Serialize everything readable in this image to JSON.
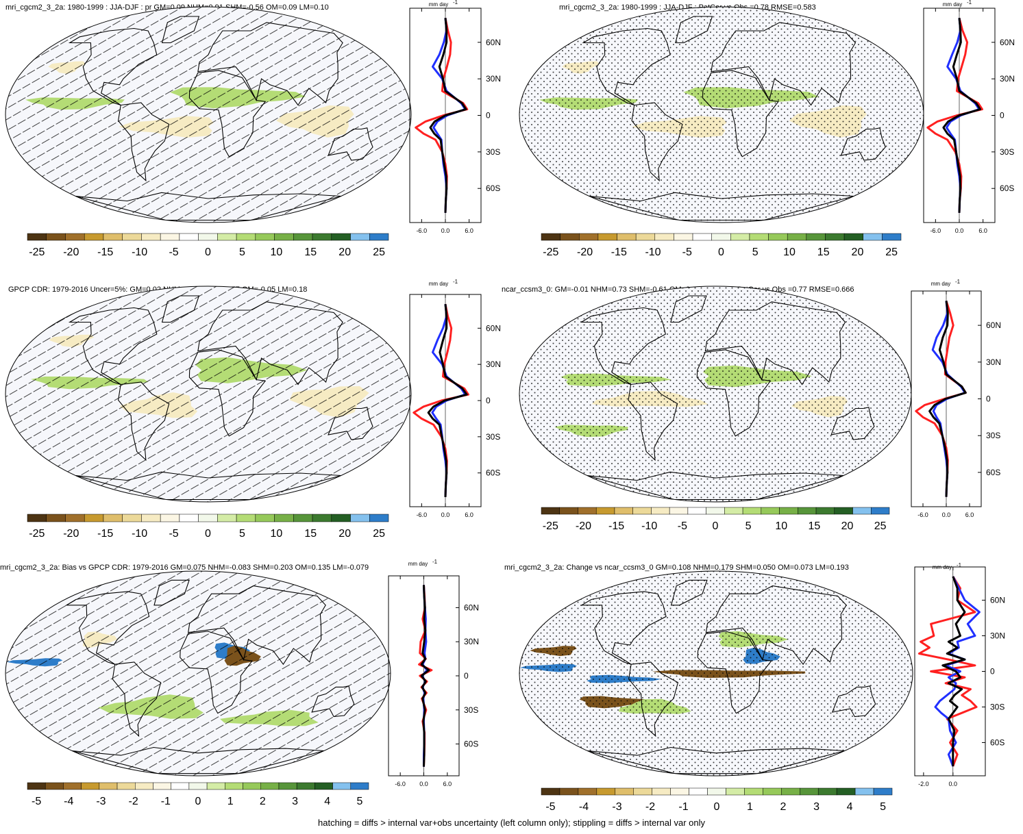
{
  "figure": {
    "footer": "hatching = diffs > internal var+obs uncertainty (left column only); stippling = diffs > internal var only"
  },
  "chart_data": [
    {
      "type": "heatmap",
      "title": "mri_cgcm2_3_2a: 1980-1999 : JJA-DJF : pr GM=0.09 NHM=0.91 SHM=-0.56 OM=0.09 LM=0.10",
      "overlay": "hatching",
      "colorbar": {
        "ticks": [
          "-25",
          "-20",
          "-15",
          "-10",
          "-5",
          "0",
          "5",
          "10",
          "15",
          "20",
          "25"
        ]
      },
      "zonal_mean": {
        "unit": "mm day",
        "xlim": [
          -9,
          9
        ],
        "xticks": [
          "-6.0",
          "0.0",
          "6.0"
        ],
        "lat_ticks": [
          "60N",
          "30N",
          "0",
          "30S",
          "60S"
        ],
        "lat": [
          80,
          70,
          60,
          50,
          40,
          30,
          20,
          10,
          5,
          0,
          -5,
          -10,
          -15,
          -20,
          -30,
          -40,
          -50,
          -60,
          -70,
          -80
        ],
        "series": [
          {
            "color": "#ff2020",
            "values": [
              0,
              0.6,
              1.4,
              1.2,
              0.4,
              -0.5,
              -0.8,
              4.5,
              5.5,
              -0.5,
              -5,
              -7.5,
              -5.5,
              -2.5,
              -0.8,
              0,
              0.4,
              0.3,
              0.1,
              0
            ]
          },
          {
            "color": "#2030ff",
            "values": [
              0,
              0.3,
              -0.4,
              -1.5,
              -3.2,
              -0.8,
              0.3,
              4,
              5,
              0.5,
              -2,
              -3,
              -2,
              -1,
              -0.8,
              -0.5,
              0,
              0.3,
              0.1,
              0
            ]
          },
          {
            "color": "#000000",
            "values": [
              0,
              0.3,
              0.3,
              -0.5,
              -1.5,
              -0.6,
              0,
              4.2,
              5.2,
              0,
              -2.7,
              -3.8,
              -2.8,
              -1.2,
              -0.8,
              -0.3,
              0.2,
              0.3,
              0.1,
              0
            ]
          }
        ]
      }
    },
    {
      "type": "heatmap",
      "title": "mri_cgcm2_3_2a: 1980-1999 : JJA-DJF : PatCor vs Obs =0.78 RMSE=0.583",
      "overlay": "stippling",
      "colorbar": {
        "ticks": [
          "-25",
          "-20",
          "-15",
          "-10",
          "-5",
          "0",
          "5",
          "10",
          "15",
          "20",
          "25"
        ]
      },
      "zonal_mean": {
        "unit": "mm day",
        "xlim": [
          -9,
          9
        ],
        "xticks": [
          "-6.0",
          "0.0",
          "6.0"
        ],
        "lat_ticks": [
          "60N",
          "30N",
          "0",
          "30S",
          "60S"
        ],
        "lat": [
          80,
          70,
          60,
          50,
          40,
          30,
          20,
          10,
          5,
          0,
          -5,
          -10,
          -15,
          -20,
          -30,
          -40,
          -50,
          -60,
          -70,
          -80
        ],
        "series": [
          {
            "color": "#ff2020",
            "values": [
              0,
              0.8,
              2,
              1.5,
              0.6,
              -0.3,
              -0.6,
              4.8,
              5.8,
              -0.6,
              -5.5,
              -8,
              -6,
              -3,
              -1,
              0,
              0.5,
              0.4,
              0.1,
              0
            ]
          },
          {
            "color": "#2030ff",
            "values": [
              0,
              0.3,
              -0.5,
              -1.8,
              -3,
              -0.8,
              0.3,
              4,
              5,
              0.4,
              -2.2,
              -3.2,
              -2.2,
              -1.1,
              -0.8,
              -0.5,
              0,
              0.3,
              0.1,
              0
            ]
          },
          {
            "color": "#000000",
            "values": [
              0,
              0.3,
              0.4,
              -0.6,
              -1.5,
              -0.6,
              0,
              4.3,
              5.3,
              0,
              -2.8,
              -4,
              -3,
              -1.3,
              -0.8,
              -0.3,
              0.2,
              0.3,
              0.1,
              0
            ]
          }
        ]
      }
    },
    {
      "type": "heatmap",
      "title": "GPCP CDR: 1979-2016 Uncer=5%: GM=0.02 NHM=0.99 SHM=-0.77 OM=-0.05 LM=0.18",
      "overlay": "hatching",
      "colorbar": {
        "ticks": [
          "-25",
          "-20",
          "-15",
          "-10",
          "-5",
          "0",
          "5",
          "10",
          "15",
          "20",
          "25"
        ]
      },
      "zonal_mean": {
        "unit": "mm day",
        "xlim": [
          -9,
          9
        ],
        "xticks": [
          "-6.0",
          "0.0",
          "6.0"
        ],
        "lat_ticks": [
          "60N",
          "30N",
          "0",
          "30S",
          "60S"
        ],
        "lat": [
          80,
          70,
          60,
          50,
          40,
          30,
          20,
          10,
          5,
          0,
          -5,
          -10,
          -15,
          -20,
          -30,
          -40,
          -50,
          -60,
          -70,
          -80
        ],
        "series": [
          {
            "color": "#ff2020",
            "values": [
              0,
              0.6,
              1.5,
              1.2,
              0.5,
              -0.3,
              -0.6,
              4.8,
              5.8,
              -1,
              -5.5,
              -8,
              -6,
              -3,
              -1,
              0,
              0.4,
              0.3,
              0.1,
              0
            ]
          },
          {
            "color": "#2030ff",
            "values": [
              0,
              0.3,
              -0.6,
              -2,
              -3.2,
              -0.8,
              0.3,
              4,
              5,
              0.3,
              -2.3,
              -3.3,
              -2.3,
              -1.2,
              -0.8,
              -0.5,
              0,
              0.3,
              0.1,
              0
            ]
          },
          {
            "color": "#000000",
            "values": [
              0,
              0.3,
              0.3,
              -0.6,
              -1.4,
              -0.6,
              0,
              4.3,
              5.4,
              -0.2,
              -3,
              -4.3,
              -3.2,
              -1.5,
              -0.9,
              -0.3,
              0.2,
              0.3,
              0.1,
              0
            ]
          }
        ]
      }
    },
    {
      "type": "heatmap",
      "title": "ncar_ccsm3_0: GM=-0.01 NHM=0.73 SHM=-0.61 OM=0.02 LM=-0.09 PatCor vs Obs =0.77 RMSE=0.666",
      "overlay": "stippling",
      "colorbar": {
        "ticks": [
          "-25",
          "-20",
          "-15",
          "-10",
          "-5",
          "0",
          "5",
          "10",
          "15",
          "20",
          "25"
        ]
      },
      "zonal_mean": {
        "unit": "mm day",
        "xlim": [
          -9,
          9
        ],
        "xticks": [
          "-6.0",
          "0.0",
          "6.0"
        ],
        "lat_ticks": [
          "60N",
          "30N",
          "0",
          "30S",
          "60S"
        ],
        "lat": [
          80,
          70,
          60,
          50,
          40,
          30,
          20,
          10,
          5,
          0,
          -5,
          -10,
          -15,
          -20,
          -30,
          -40,
          -50,
          -60,
          -70,
          -80
        ],
        "series": [
          {
            "color": "#ff2020",
            "values": [
              0,
              1,
              1.8,
              0.8,
              0.3,
              -0.2,
              -0.3,
              4,
              5,
              -0.5,
              -5.5,
              -7.8,
              -6,
              -3,
              -1,
              0,
              0.4,
              0.3,
              0.1,
              0
            ]
          },
          {
            "color": "#2030ff",
            "values": [
              0,
              0.3,
              -0.8,
              -2.5,
              -3.5,
              -1,
              0.3,
              3.8,
              4.8,
              0.2,
              -2.5,
              -3.3,
              -2.5,
              -1.5,
              -1,
              -0.5,
              0,
              0.3,
              0.1,
              0
            ]
          },
          {
            "color": "#000000",
            "values": [
              0,
              0.4,
              0.3,
              -0.9,
              -1.7,
              -0.7,
              0,
              4,
              5,
              -0.2,
              -3,
              -4.3,
              -3.3,
              -1.8,
              -1,
              -0.3,
              0.2,
              0.3,
              0.1,
              0
            ]
          }
        ]
      }
    },
    {
      "type": "heatmap",
      "title": "mri_cgcm2_3_2a: Bias vs GPCP CDR: 1979-2016 GM=0.075 NHM=-0.083 SHM=0.203 OM=0.135 LM=-0.079",
      "overlay": "hatching",
      "colorbar": {
        "ticks": [
          "-5",
          "-4",
          "-3",
          "-2",
          "-1",
          "0",
          "1",
          "2",
          "3",
          "4",
          "5"
        ]
      },
      "zonal_mean": {
        "unit": "mm day",
        "xlim": [
          -9,
          9
        ],
        "xticks": [
          "-6.0",
          "0.0",
          "6.0"
        ],
        "lat_ticks": [
          "60N",
          "30N",
          "0",
          "30S",
          "60S"
        ],
        "lat": [
          80,
          70,
          60,
          50,
          40,
          30,
          20,
          15,
          10,
          5,
          0,
          -5,
          -10,
          -15,
          -20,
          -30,
          -40,
          -50,
          -60,
          -70,
          -80
        ],
        "series": [
          {
            "color": "#ff2020",
            "values": [
              0,
              0.2,
              0.3,
              -0.3,
              0.4,
              -0.8,
              -1,
              0.5,
              -1.2,
              2,
              -1,
              0.8,
              -0.6,
              0.7,
              -0.5,
              0.6,
              -0.3,
              0.2,
              0.2,
              0.1,
              0
            ]
          },
          {
            "color": "#2030ff",
            "values": [
              0,
              0.1,
              0.3,
              0.5,
              0.4,
              0.6,
              0.2,
              0.4,
              -0.3,
              0.8,
              -0.4,
              0.4,
              -0.3,
              0.2,
              -0.1,
              0.1,
              0,
              0.1,
              0.1,
              0,
              0
            ]
          },
          {
            "color": "#000000",
            "values": [
              0,
              0.1,
              0.3,
              0.1,
              0.4,
              0.1,
              -0.3,
              0.4,
              -0.6,
              1.3,
              -0.6,
              0.5,
              -0.4,
              0.4,
              -0.3,
              0.3,
              -0.1,
              0.1,
              0.1,
              0.1,
              0
            ]
          }
        ]
      }
    },
    {
      "type": "heatmap",
      "title": "mri_cgcm2_3_2a: Change vs ncar_ccsm3_0 GM=0.108 NHM=0.179 SHM=0.050 OM=0.073 LM=0.193",
      "overlay": "stippling",
      "colorbar": {
        "ticks": [
          "-5",
          "-4",
          "-3",
          "-2",
          "-1",
          "0",
          "1",
          "2",
          "3",
          "4",
          "5"
        ]
      },
      "zonal_mean": {
        "unit": "mm day",
        "xlim": [
          -2.6,
          2.2
        ],
        "xticks": [
          "-2.0",
          "0.0"
        ],
        "lat_ticks": [
          "60N",
          "30N",
          "0",
          "30S",
          "60S"
        ],
        "lat": [
          80,
          70,
          60,
          50,
          40,
          30,
          25,
          20,
          15,
          10,
          5,
          0,
          -5,
          -10,
          -15,
          -20,
          -25,
          -30,
          -35,
          -40,
          -50,
          -60,
          -70,
          -80
        ],
        "series": [
          {
            "color": "#ff2020",
            "values": [
              0,
              0.5,
              0.3,
              1.5,
              -1.5,
              -1.3,
              -2.2,
              -1.6,
              -2.3,
              -0.3,
              1.5,
              -1.5,
              0.8,
              -0.5,
              1.2,
              0.6,
              1.2,
              1.6,
              0.6,
              -0.4,
              0.3,
              -0.2,
              0.3,
              0
            ]
          },
          {
            "color": "#2030ff",
            "values": [
              0,
              0.4,
              0.8,
              1.8,
              1.0,
              1.5,
              0.3,
              0.4,
              -0.3,
              0.8,
              -0.5,
              0.5,
              -0.3,
              0.2,
              0.1,
              -0.4,
              -0.9,
              -1.2,
              -0.8,
              -0.3,
              -0.2,
              0.2,
              -0.3,
              0
            ]
          },
          {
            "color": "#000000",
            "values": [
              0,
              0.3,
              0.3,
              0.8,
              0.2,
              0.5,
              -0.3,
              0.3,
              -0.4,
              0.8,
              -0.7,
              0.2,
              0.5,
              -0.3,
              0.6,
              0.1,
              -0.2,
              0.3,
              0,
              -0.3,
              0.1,
              0,
              0,
              0
            ]
          }
        ]
      }
    }
  ]
}
